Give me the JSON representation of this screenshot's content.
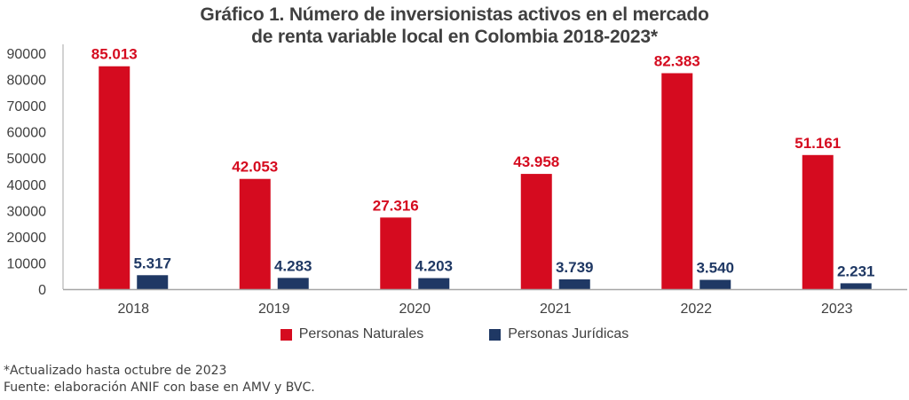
{
  "chart_data": {
    "type": "bar",
    "title": "Gráfico 1. Número de inversionistas activos en el mercado de renta variable local en Colombia 2018-2023*",
    "title_lines": [
      "Gráfico 1. Número de inversionistas activos en el mercado",
      "de renta variable local en Colombia 2018-2023*"
    ],
    "categories": [
      "2018",
      "2019",
      "2020",
      "2021",
      "2022",
      "2023"
    ],
    "series": [
      {
        "name": "Personas Naturales",
        "color": "#d50b1f",
        "values": [
          85013,
          42053,
          27316,
          43958,
          82383,
          51161
        ],
        "labels": [
          "85.013",
          "42.053",
          "27.316",
          "43.958",
          "82.383",
          "51.161"
        ]
      },
      {
        "name": "Personas Jurídicas",
        "color": "#1f3864",
        "values": [
          5317,
          4283,
          4203,
          3739,
          3540,
          2231
        ],
        "labels": [
          "5.317",
          "4.283",
          "4.203",
          "3.739",
          "3.540",
          "2.231"
        ]
      }
    ],
    "xlabel": "",
    "ylabel": "",
    "ylim": [
      0,
      90000
    ],
    "yticks": [
      0,
      10000,
      20000,
      30000,
      40000,
      50000,
      60000,
      70000,
      80000,
      90000
    ],
    "ytick_labels": [
      "0",
      "10000",
      "20000",
      "30000",
      "40000",
      "50000",
      "60000",
      "70000",
      "80000",
      "90000"
    ],
    "grid": false,
    "legend_position": "bottom"
  },
  "notes": {
    "updated": "*Actualizado hasta octubre de 2023",
    "source": "Fuente: elaboración ANIF con base en AMV y BVC."
  }
}
